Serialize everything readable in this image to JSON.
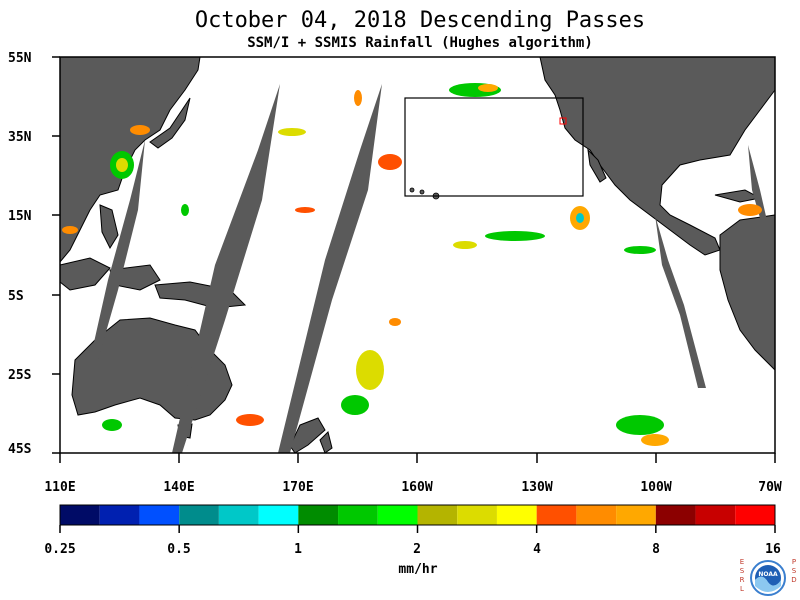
{
  "title": "October 04, 2018  Descending Passes",
  "subtitle": "SSM/I + SSMIS Rainfall (Hughes algorithm)",
  "lat_labels": [
    "55N",
    "35N",
    "15N",
    "5S",
    "25S",
    "45S"
  ],
  "lon_labels": [
    "110E",
    "140E",
    "170E",
    "160W",
    "130W",
    "100W",
    "70W"
  ],
  "colorbar": {
    "tick_labels": [
      "0.25",
      "0.5",
      "1",
      "2",
      "4",
      "8",
      "16"
    ],
    "units": "mm/hr",
    "colors": [
      "#000b66",
      "#0020b0",
      "#0050ff",
      "#008c8c",
      "#00c8c8",
      "#00ffff",
      "#008c00",
      "#00c800",
      "#00ff00",
      "#b4b400",
      "#dcdc00",
      "#ffff00",
      "#ff5000",
      "#ff8c00",
      "#ffa800",
      "#8c0000",
      "#c80000",
      "#ff0000"
    ]
  },
  "logo": {
    "left_letters": "ESRL",
    "right_letters": "PSD",
    "emblem_text": "NOAA"
  },
  "colors": {
    "land": "#5a5a5a",
    "swath_gap": "#5a5a5a",
    "ocean": "#ffffff"
  }
}
